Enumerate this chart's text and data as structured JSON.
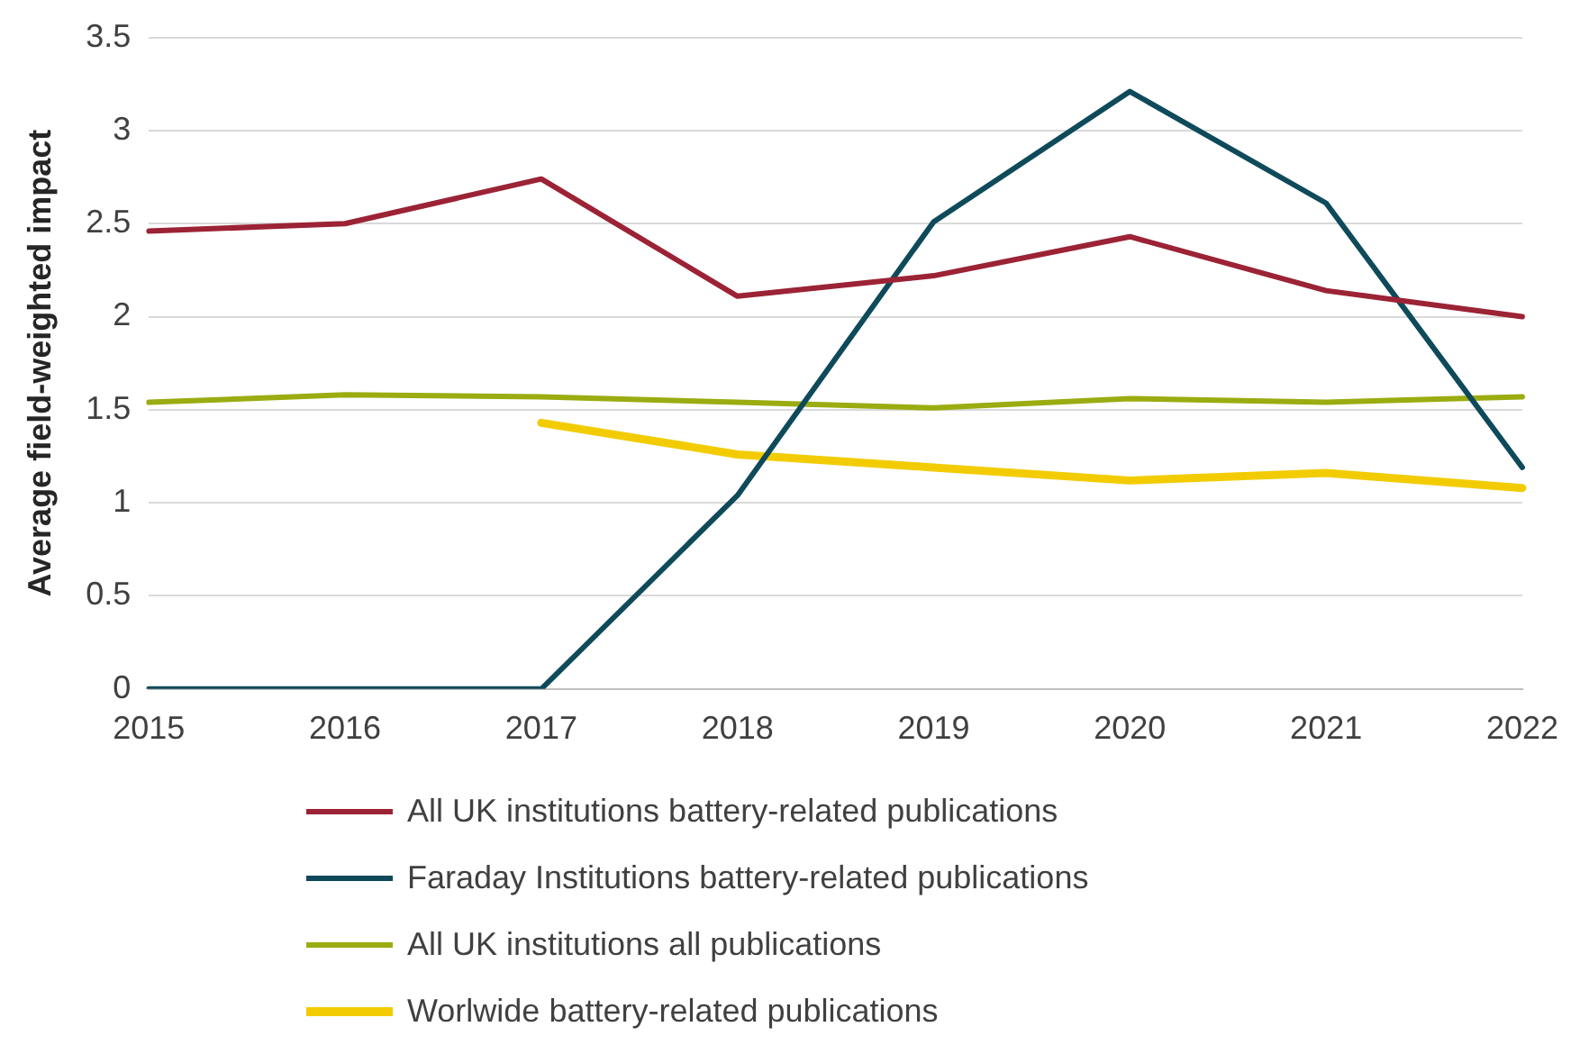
{
  "chart_data": {
    "type": "line",
    "ylabel": "Average field-weighted impact",
    "categories": [
      "2015",
      "2016",
      "2017",
      "2018",
      "2019",
      "2020",
      "2021",
      "2022"
    ],
    "series": [
      {
        "name": "All UK institutions battery-related publications",
        "color": "#9b2335",
        "values": [
          2.46,
          2.5,
          2.74,
          2.11,
          2.22,
          2.43,
          2.14,
          2.0
        ]
      },
      {
        "name": "Faraday Institutions battery-related publications",
        "color": "#0e4a5a",
        "values": [
          0,
          0,
          0,
          1.04,
          2.51,
          3.21,
          2.61,
          1.19
        ]
      },
      {
        "name": "All UK institutions all publications",
        "color": "#9aac10",
        "values": [
          1.54,
          1.58,
          1.57,
          1.54,
          1.51,
          1.56,
          1.54,
          1.57
        ]
      },
      {
        "name": "Worlwide battery-related publications",
        "color": "#f2cc00",
        "values": [
          null,
          null,
          1.43,
          1.26,
          1.19,
          1.12,
          1.16,
          1.08
        ]
      }
    ],
    "ylim": [
      0,
      3.5
    ],
    "yticks": [
      0,
      0.5,
      1,
      1.5,
      2,
      2.5,
      3,
      3.5
    ],
    "grid": "y",
    "legend": "bottom",
    "marker": "none",
    "line_style": "solid"
  }
}
